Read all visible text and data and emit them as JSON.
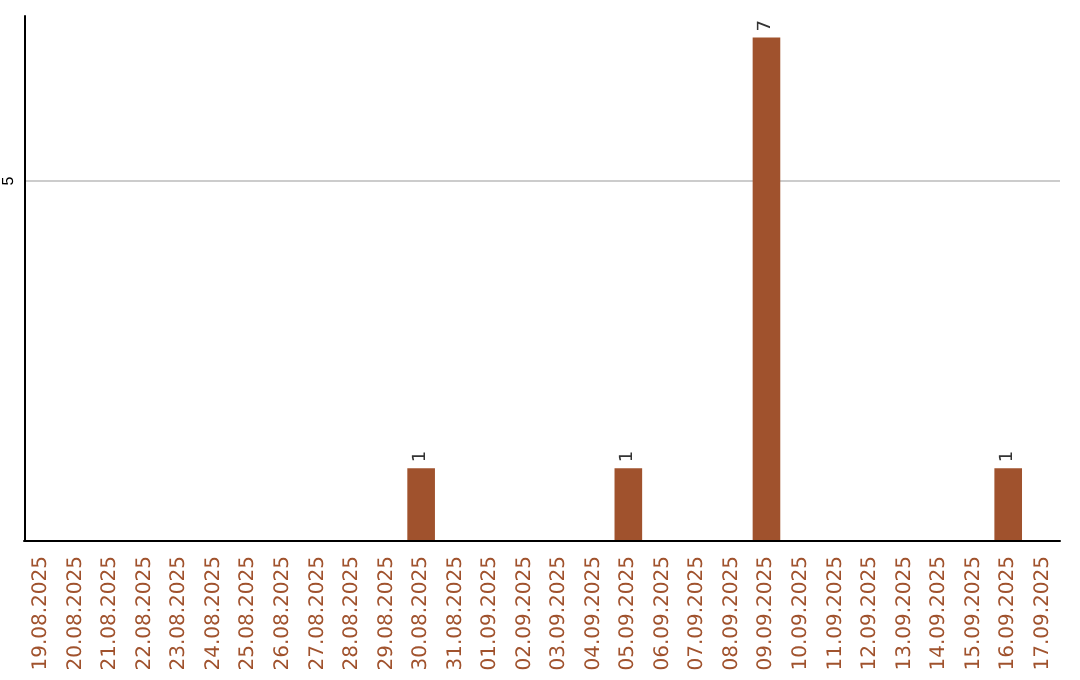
{
  "chart_data": {
    "type": "bar",
    "categories": [
      "19.08.2025",
      "20.08.2025",
      "21.08.2025",
      "22.08.2025",
      "23.08.2025",
      "24.08.2025",
      "25.08.2025",
      "26.08.2025",
      "27.08.2025",
      "28.08.2025",
      "29.08.2025",
      "30.08.2025",
      "31.08.2025",
      "01.09.2025",
      "02.09.2025",
      "03.09.2025",
      "04.09.2025",
      "05.09.2025",
      "06.09.2025",
      "07.09.2025",
      "08.09.2025",
      "09.09.2025",
      "10.09.2025",
      "11.09.2025",
      "12.09.2025",
      "13.09.2025",
      "14.09.2025",
      "15.09.2025",
      "16.09.2025",
      "17.09.2025"
    ],
    "values": [
      0,
      0,
      0,
      0,
      0,
      0,
      0,
      0,
      0,
      0,
      0,
      1,
      0,
      0,
      0,
      0,
      0,
      1,
      0,
      0,
      0,
      7,
      0,
      0,
      0,
      0,
      0,
      0,
      1,
      0
    ],
    "value_labels": [
      null,
      null,
      null,
      null,
      null,
      null,
      null,
      null,
      null,
      null,
      null,
      "1",
      null,
      null,
      null,
      null,
      null,
      "1",
      null,
      null,
      null,
      "7",
      null,
      null,
      null,
      null,
      null,
      null,
      "1",
      null
    ],
    "color": "#a0522d",
    "ylim": [
      0,
      7.3
    ],
    "yticks": [
      5
    ],
    "grid": "y"
  }
}
